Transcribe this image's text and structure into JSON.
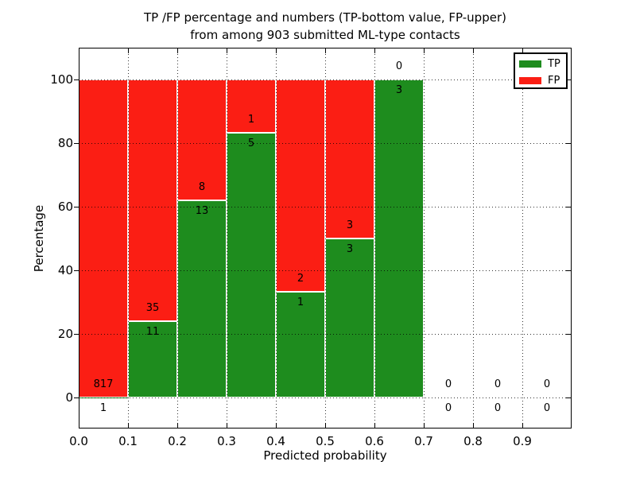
{
  "figure": {
    "title_line1": "TP /FP percentage and numbers (TP-bottom value, FP-upper)",
    "title_line2": "from among 903 submitted ML-type contacts",
    "xlabel": "Predicted probability",
    "ylabel": "Percentage"
  },
  "legend": {
    "position": "upper right",
    "items": [
      {
        "label": "TP",
        "color": "#1e8c1e"
      },
      {
        "label": "FP",
        "color": "#fb1e14"
      }
    ]
  },
  "chart_data": {
    "type": "bar",
    "stacked": true,
    "normalized": "each bin scaled to 100%, green TP portion bottom, red FP portion top",
    "title": "TP /FP percentage and numbers (TP-bottom value, FP-upper) from among 903 submitted ML-type contacts",
    "xlabel": "Predicted probability",
    "ylabel": "Percentage",
    "total_contacts": 903,
    "xlim": [
      0.0,
      1.0
    ],
    "ylim": [
      -10,
      110
    ],
    "x_tick_labels": [
      "0.0",
      "0.1",
      "0.2",
      "0.3",
      "0.4",
      "0.5",
      "0.6",
      "0.7",
      "0.8",
      "0.9"
    ],
    "y_tick_values": [
      0,
      20,
      40,
      60,
      80,
      100
    ],
    "grid": "dotted, both axes, drawn over bars",
    "legend_position": "upper right",
    "bin_width": 0.1,
    "bins": [
      {
        "x_start": 0.0,
        "x_end": 0.1,
        "tp": 1,
        "fp": 817
      },
      {
        "x_start": 0.1,
        "x_end": 0.2,
        "tp": 11,
        "fp": 35
      },
      {
        "x_start": 0.2,
        "x_end": 0.3,
        "tp": 13,
        "fp": 8
      },
      {
        "x_start": 0.3,
        "x_end": 0.4,
        "tp": 5,
        "fp": 1
      },
      {
        "x_start": 0.4,
        "x_end": 0.5,
        "tp": 1,
        "fp": 2
      },
      {
        "x_start": 0.5,
        "x_end": 0.6,
        "tp": 3,
        "fp": 3
      },
      {
        "x_start": 0.6,
        "x_end": 0.7,
        "tp": 3,
        "fp": 0
      },
      {
        "x_start": 0.7,
        "x_end": 0.8,
        "tp": 0,
        "fp": 0
      },
      {
        "x_start": 0.8,
        "x_end": 0.9,
        "tp": 0,
        "fp": 0
      },
      {
        "x_start": 0.9,
        "x_end": 1.0,
        "tp": 0,
        "fp": 0
      }
    ],
    "colors": {
      "tp": "#1e8c1e",
      "fp": "#fb1e14",
      "grid": "#000000",
      "text": "#000000"
    }
  }
}
